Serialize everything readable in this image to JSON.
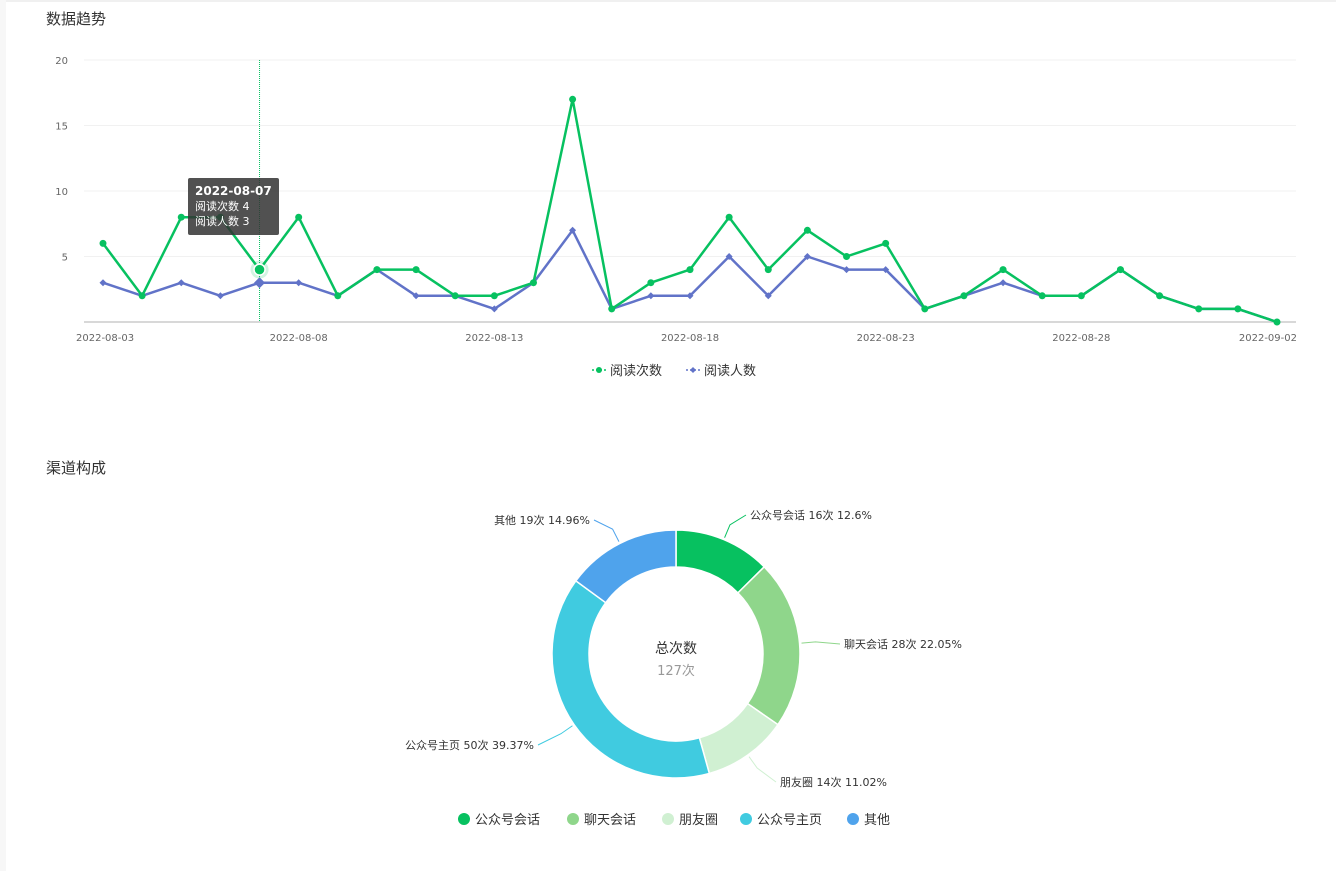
{
  "trend": {
    "title": "数据趋势",
    "tooltip": {
      "date": "2022-08-07",
      "line1": "阅读次数 4",
      "line2": "阅读人数 3",
      "index": 4
    },
    "legend": [
      "阅读次数",
      "阅读人数"
    ]
  },
  "channel": {
    "title": "渠道构成",
    "center_title": "总次数",
    "center_value": "127次",
    "legend": [
      "公众号会话",
      "聊天会话",
      "朋友圈",
      "公众号主页",
      "其他"
    ],
    "labels": [
      "公众号会话 16次 12.6%",
      "聊天会话 28次 22.05%",
      "朋友圈 14次 11.02%",
      "公众号主页 50次 39.37%",
      "其他 19次 14.96%"
    ]
  },
  "chart_data": [
    {
      "type": "line",
      "title": "数据趋势",
      "x": [
        "2022-08-03",
        "2022-08-04",
        "2022-08-05",
        "2022-08-06",
        "2022-08-07",
        "2022-08-08",
        "2022-08-09",
        "2022-08-10",
        "2022-08-11",
        "2022-08-12",
        "2022-08-13",
        "2022-08-14",
        "2022-08-15",
        "2022-08-16",
        "2022-08-17",
        "2022-08-18",
        "2022-08-19",
        "2022-08-20",
        "2022-08-21",
        "2022-08-22",
        "2022-08-23",
        "2022-08-24",
        "2022-08-25",
        "2022-08-26",
        "2022-08-27",
        "2022-08-28",
        "2022-08-29",
        "2022-08-30",
        "2022-08-31",
        "2022-09-01",
        "2022-09-02"
      ],
      "x_tick_labels": [
        "2022-08-03",
        "2022-08-08",
        "2022-08-13",
        "2022-08-18",
        "2022-08-23",
        "2022-08-28",
        "2022-09-02"
      ],
      "y_ticks": [
        "5",
        "10",
        "15",
        "20"
      ],
      "ylim": [
        0,
        20
      ],
      "grid": true,
      "legend_position": "bottom",
      "series": [
        {
          "name": "阅读次数",
          "color": "#07c160",
          "marker": "circle",
          "values": [
            6,
            2,
            8,
            8,
            4,
            8,
            2,
            4,
            4,
            2,
            2,
            3,
            17,
            1,
            3,
            4,
            8,
            4,
            7,
            5,
            6,
            1,
            2,
            4,
            2,
            2,
            4,
            2,
            1,
            1,
            0
          ]
        },
        {
          "name": "阅读人数",
          "color": "#6173c8",
          "marker": "diamond",
          "values": [
            3,
            2,
            3,
            2,
            3,
            3,
            2,
            4,
            2,
            2,
            1,
            3,
            7,
            1,
            2,
            2,
            5,
            2,
            5,
            4,
            4,
            1,
            2,
            3,
            2,
            2,
            4,
            2,
            1,
            1,
            0
          ]
        }
      ]
    },
    {
      "type": "pie",
      "title": "渠道构成",
      "total": 127,
      "slices": [
        {
          "name": "公众号会话",
          "value": 16,
          "percent": 12.6,
          "color": "#07c160"
        },
        {
          "name": "聊天会话",
          "value": 28,
          "percent": 22.05,
          "color": "#8fd68b"
        },
        {
          "name": "朋友圈",
          "value": 14,
          "percent": 11.02,
          "color": "#d0f0d2"
        },
        {
          "name": "公众号主页",
          "value": 50,
          "percent": 39.37,
          "color": "#40cbe0"
        },
        {
          "name": "其他",
          "value": 19,
          "percent": 14.96,
          "color": "#4fa3ec"
        }
      ]
    }
  ]
}
